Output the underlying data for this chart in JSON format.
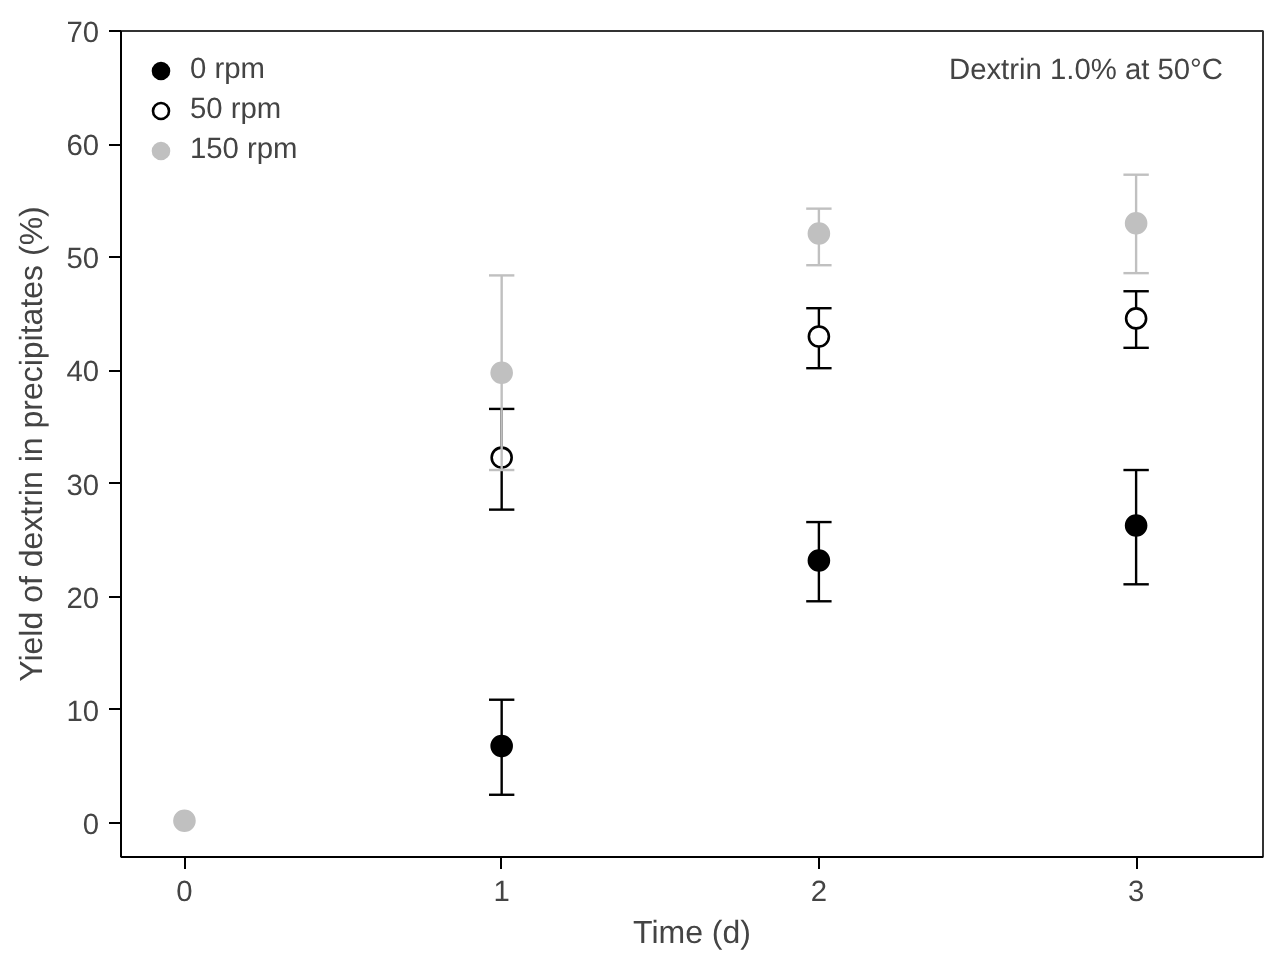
{
  "chart_data": {
    "type": "scatter",
    "xlabel": "Time (d)",
    "ylabel": "Yield of dextrin in precipitates (%)",
    "annotations": [
      "Dextrin 1.0% at 50°C"
    ],
    "xlim": [
      -0.2,
      3.4
    ],
    "xticks": [
      0,
      1,
      2,
      3
    ],
    "ylim": [
      -3,
      70
    ],
    "yticks": [
      0,
      10,
      20,
      30,
      40,
      50,
      60,
      70
    ],
    "grid": false,
    "legend": "top left",
    "marker": "circle",
    "series": [
      {
        "name": "0 rpm",
        "color": "#000000",
        "x": [
          1,
          2,
          3
        ],
        "values": [
          6.8,
          23.2,
          26.3
        ],
        "errors": [
          [
            2.5,
            10.9
          ],
          [
            19.6,
            26.6
          ],
          [
            21.1,
            31.2
          ]
        ]
      },
      {
        "name": "50 rpm",
        "color": "#ffffff",
        "x": [
          1,
          2,
          3
        ],
        "values": [
          32.3,
          43.0,
          44.6
        ],
        "errors": [
          [
            27.7,
            36.6
          ],
          [
            40.2,
            45.5
          ],
          [
            42.0,
            47.0
          ]
        ]
      },
      {
        "name": "150 rpm",
        "color": "#c0c0c0",
        "x": [
          0,
          1,
          2,
          3
        ],
        "values": [
          0.2,
          39.8,
          52.1,
          53.0
        ],
        "errors": [
          null,
          [
            31.2,
            48.4
          ],
          [
            49.3,
            54.3
          ],
          [
            48.6,
            57.3
          ]
        ]
      }
    ]
  }
}
